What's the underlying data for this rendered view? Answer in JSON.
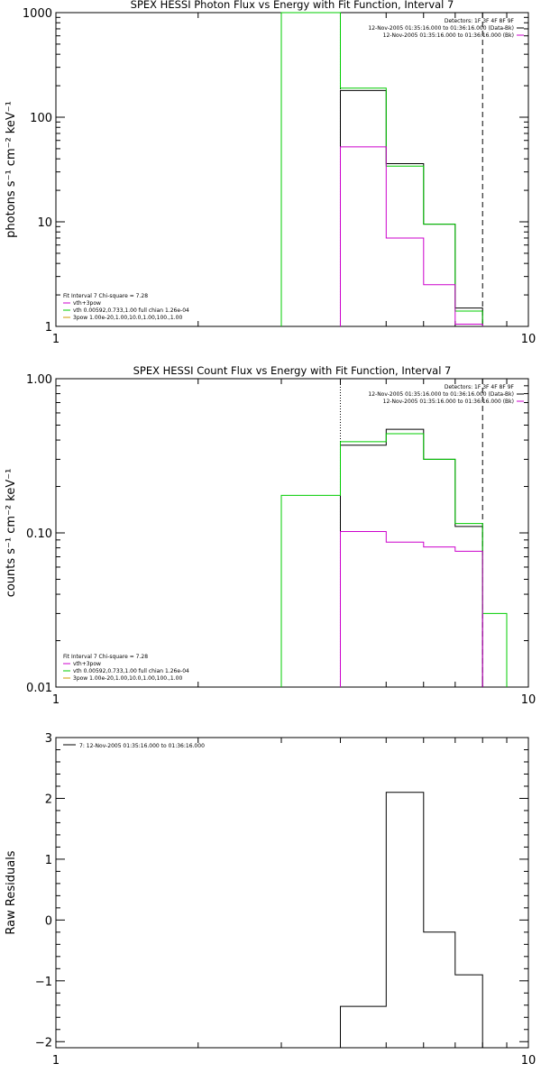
{
  "chart_data": [
    {
      "type": "line",
      "title": "SPEX HESSI Photon Flux vs Energy with Fit Function, Interval 7",
      "xlabel": "",
      "ylabel": "photons s⁻¹ cm⁻² keV⁻¹",
      "xscale": "log",
      "yscale": "log",
      "xlim": [
        1,
        10
      ],
      "ylim": [
        1,
        1000
      ],
      "x_ticks": [
        {
          "v": 1,
          "label": "1"
        },
        {
          "v": 10,
          "label": "10"
        }
      ],
      "y_ticks": [
        {
          "v": 1,
          "label": "1"
        },
        {
          "v": 10,
          "label": "10"
        },
        {
          "v": 100,
          "label": "100"
        },
        {
          "v": 1000,
          "label": "1000"
        }
      ],
      "vlines": [
        {
          "x": 4,
          "style": "dotted"
        },
        {
          "x": 8,
          "style": "dashed"
        }
      ],
      "top_legend": [
        {
          "text": "Detectors: 1F 3F 4F 8F 9F",
          "color": ""
        },
        {
          "text": "12-Nov-2005 01:35:16.000 to 01:36:16.000 (Data-Bk)",
          "color": "#000000"
        },
        {
          "text": "12-Nov-2005 01:35:16.000 to 01:36:16.000 (Bk)",
          "color": "#cc00cc"
        }
      ],
      "fit_legend": [
        {
          "text": "Fit Interval  7    Chi-square = 7.28",
          "color": ""
        },
        {
          "text": "vth+3pow",
          "color": "#cc00cc"
        },
        {
          "text": "vth 0.00592,0.733,1.00   full chian 1.26e-04",
          "color": "#00cc00"
        },
        {
          "text": "3pow  1.00e-20,1.00,10.0,1.00,100.,1.00",
          "color": "#cc9900"
        }
      ],
      "series": [
        {
          "color": "#000000",
          "edges": [
            4,
            5,
            6,
            7,
            8
          ],
          "values": [
            180,
            36,
            9.5,
            1.5
          ]
        },
        {
          "color": "#00cc00",
          "edges": [
            3,
            4,
            5,
            6,
            7,
            8
          ],
          "values": [
            1000,
            190,
            34,
            9.5,
            1.4
          ]
        },
        {
          "color": "#cc00cc",
          "edges": [
            4,
            5,
            6,
            7,
            8
          ],
          "values": [
            52,
            7,
            2.5,
            1.05
          ]
        }
      ]
    },
    {
      "type": "line",
      "title": "SPEX HESSI Count Flux vs Energy with Fit Function, Interval 7",
      "xlabel": "",
      "ylabel": "counts s⁻¹ cm⁻² keV⁻¹",
      "xscale": "log",
      "yscale": "log",
      "xlim": [
        1,
        10
      ],
      "ylim": [
        0.01,
        1
      ],
      "x_ticks": [
        {
          "v": 1,
          "label": "1"
        },
        {
          "v": 10,
          "label": "10"
        }
      ],
      "y_ticks": [
        {
          "v": 0.01,
          "label": "0.01"
        },
        {
          "v": 0.1,
          "label": "0.10"
        },
        {
          "v": 1,
          "label": "1.00"
        }
      ],
      "vlines": [
        {
          "x": 4,
          "style": "dotted"
        },
        {
          "x": 8,
          "style": "dashed"
        }
      ],
      "top_legend": [
        {
          "text": "Detectors: 1F 3F 4F 8F 9F",
          "color": ""
        },
        {
          "text": "12-Nov-2005 01:35:16.000 to 01:36:16.000 (Data-Bk)",
          "color": "#000000"
        },
        {
          "text": "12-Nov-2005 01:35:16.000 to 01:36:16.000 (Bk)",
          "color": "#cc00cc"
        }
      ],
      "fit_legend": [
        {
          "text": "Fit Interval  7    Chi-square = 7.28",
          "color": ""
        },
        {
          "text": "vth+3pow",
          "color": "#cc00cc"
        },
        {
          "text": "vth 0.00592,0.733,1.00   full chian 1.26e-04",
          "color": "#00cc00"
        },
        {
          "text": "3pow  1.00e-20,1.00,10.0,1.00,100.,1.00",
          "color": "#cc9900"
        }
      ],
      "series": [
        {
          "color": "#000000",
          "edges": [
            4,
            5,
            6,
            7,
            8
          ],
          "values": [
            0.37,
            0.47,
            0.3,
            0.11
          ]
        },
        {
          "color": "#00cc00",
          "edges": [
            3,
            4,
            5,
            6,
            7,
            8,
            9
          ],
          "values": [
            0.175,
            0.39,
            0.44,
            0.3,
            0.115,
            0.03
          ]
        },
        {
          "color": "#cc00cc",
          "edges": [
            4,
            5,
            6,
            7,
            8
          ],
          "values": [
            0.102,
            0.087,
            0.081,
            0.076
          ]
        }
      ]
    },
    {
      "type": "line",
      "title": "",
      "xlabel": "",
      "ylabel": "Raw Residuals",
      "xscale": "log",
      "yscale": "linear",
      "xlim": [
        1,
        10
      ],
      "ylim": [
        -2.1,
        3
      ],
      "x_ticks": [
        {
          "v": 1,
          "label": "1"
        },
        {
          "v": 10,
          "label": "10"
        }
      ],
      "y_ticks": [
        {
          "v": -2,
          "label": "−2"
        },
        {
          "v": -1,
          "label": "−1"
        },
        {
          "v": 0,
          "label": "0"
        },
        {
          "v": 1,
          "label": "1"
        },
        {
          "v": 2,
          "label": "2"
        },
        {
          "v": 3,
          "label": "3"
        }
      ],
      "vlines": [],
      "top_legend": [
        {
          "text": "7: 12-Nov-2005 01:35:16.000 to 01:36:16.000",
          "color": "#000000"
        }
      ],
      "fit_legend": [],
      "series": [
        {
          "color": "#000000",
          "edges": [
            4,
            5,
            6,
            7,
            8
          ],
          "values": [
            -1.42,
            2.1,
            -0.2,
            -0.9
          ]
        }
      ]
    }
  ]
}
